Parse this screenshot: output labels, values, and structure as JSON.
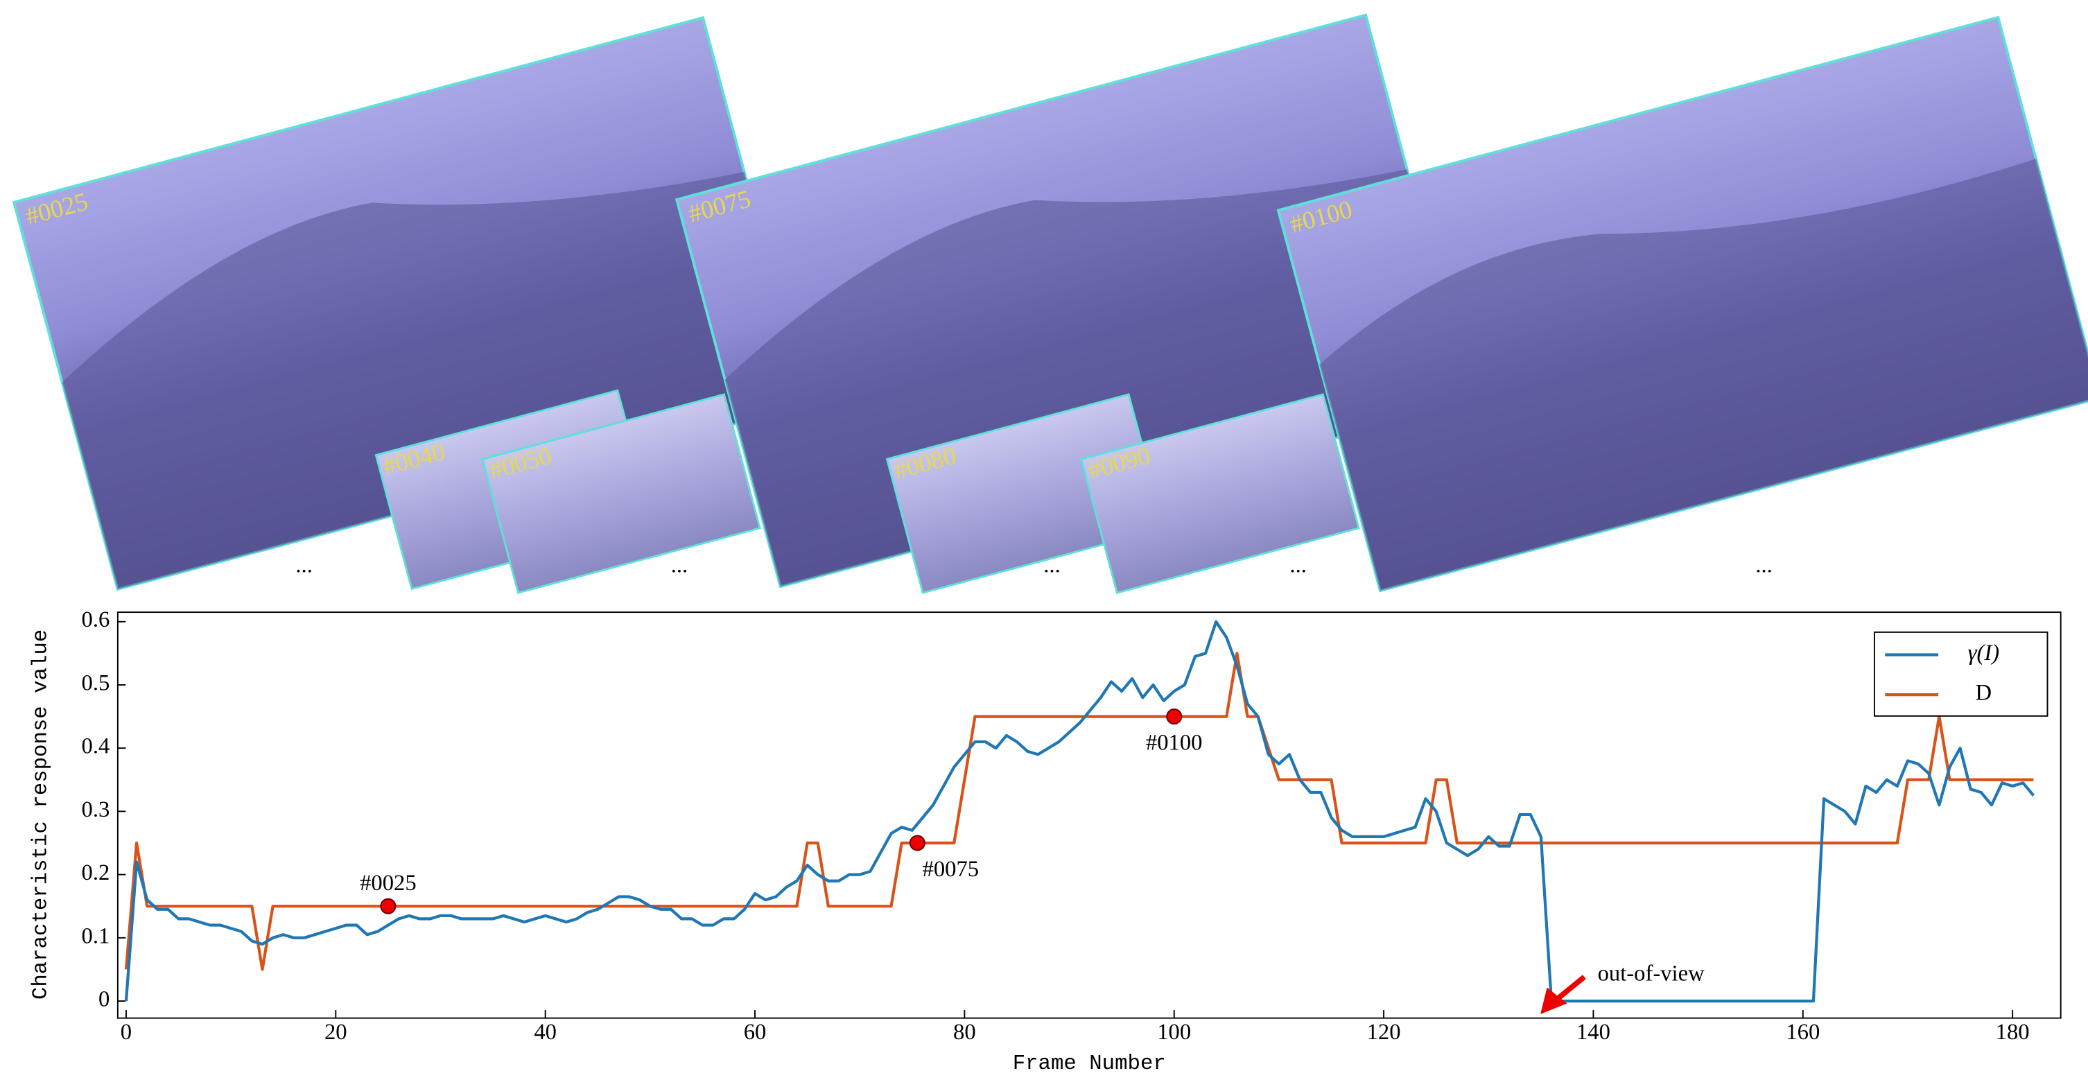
{
  "frames": [
    {
      "label": "#0025"
    },
    {
      "label": "#0040"
    },
    {
      "label": "#0050"
    },
    {
      "label": "#0075"
    },
    {
      "label": "#0080"
    },
    {
      "label": "#0090"
    },
    {
      "label": "#0100"
    }
  ],
  "ellipsis": "...",
  "chart_data": {
    "type": "line",
    "xlabel": "Frame Number",
    "ylabel": "Characteristic response value",
    "xlim": [
      -0.8,
      184.6
    ],
    "ylim": [
      -0.027,
      0.615
    ],
    "xticks": [
      0,
      20,
      40,
      60,
      80,
      100,
      120,
      140,
      160,
      180
    ],
    "yticks": [
      0,
      0.1,
      0.2,
      0.3,
      0.4,
      0.5,
      0.6
    ],
    "legend": "upper right",
    "series": [
      {
        "name": "γ(I)",
        "color": "#1f77b4",
        "x": [
          0,
          1,
          2,
          3,
          4,
          5,
          6,
          7,
          8,
          9,
          10,
          11,
          12,
          13,
          14,
          15,
          16,
          17,
          18,
          19,
          20,
          21,
          22,
          23,
          24,
          25,
          26,
          27,
          28,
          29,
          30,
          31,
          32,
          33,
          34,
          35,
          36,
          37,
          38,
          39,
          40,
          41,
          42,
          43,
          44,
          45,
          46,
          47,
          48,
          49,
          50,
          51,
          52,
          53,
          54,
          55,
          56,
          57,
          58,
          59,
          60,
          61,
          62,
          63,
          64,
          65,
          66,
          67,
          68,
          69,
          70,
          71,
          72,
          73,
          74,
          75,
          76,
          77,
          78,
          79,
          80,
          81,
          82,
          83,
          84,
          85,
          86,
          87,
          88,
          89,
          90,
          91,
          92,
          93,
          94,
          95,
          96,
          97,
          98,
          99,
          100,
          101,
          102,
          103,
          104,
          105,
          106,
          107,
          108,
          109,
          110,
          111,
          112,
          113,
          114,
          115,
          116,
          117,
          118,
          119,
          120,
          121,
          122,
          123,
          124,
          125,
          126,
          127,
          128,
          129,
          130,
          131,
          132,
          133,
          134,
          135,
          136,
          161,
          162,
          163,
          164,
          165,
          166,
          167,
          168,
          169,
          170,
          171,
          172,
          173,
          174,
          175,
          176,
          177,
          178,
          179,
          180,
          181,
          182
        ],
        "values": [
          0,
          0.22,
          0.16,
          0.145,
          0.145,
          0.13,
          0.13,
          0.125,
          0.12,
          0.12,
          0.115,
          0.11,
          0.095,
          0.09,
          0.1,
          0.105,
          0.1,
          0.1,
          0.105,
          0.11,
          0.115,
          0.12,
          0.12,
          0.105,
          0.11,
          0.12,
          0.13,
          0.135,
          0.13,
          0.13,
          0.135,
          0.135,
          0.13,
          0.13,
          0.13,
          0.13,
          0.135,
          0.13,
          0.125,
          0.13,
          0.135,
          0.13,
          0.125,
          0.13,
          0.14,
          0.145,
          0.155,
          0.165,
          0.165,
          0.16,
          0.15,
          0.145,
          0.145,
          0.13,
          0.13,
          0.12,
          0.12,
          0.13,
          0.13,
          0.145,
          0.17,
          0.16,
          0.165,
          0.18,
          0.19,
          0.215,
          0.2,
          0.19,
          0.19,
          0.2,
          0.2,
          0.205,
          0.235,
          0.265,
          0.275,
          0.27,
          0.29,
          0.31,
          0.34,
          0.37,
          0.39,
          0.41,
          0.41,
          0.4,
          0.42,
          0.41,
          0.395,
          0.39,
          0.4,
          0.41,
          0.425,
          0.44,
          0.46,
          0.48,
          0.505,
          0.49,
          0.51,
          0.48,
          0.5,
          0.475,
          0.49,
          0.5,
          0.545,
          0.55,
          0.6,
          0.575,
          0.53,
          0.47,
          0.45,
          0.39,
          0.375,
          0.39,
          0.35,
          0.33,
          0.33,
          0.29,
          0.27,
          0.26,
          0.26,
          0.26,
          0.26,
          0.265,
          0.27,
          0.275,
          0.32,
          0.3,
          0.25,
          0.24,
          0.23,
          0.24,
          0.26,
          0.245,
          0.245,
          0.295,
          0.295,
          0.26,
          0,
          0,
          0.32,
          0.31,
          0.3,
          0.28,
          0.34,
          0.33,
          0.35,
          0.34,
          0.38,
          0.375,
          0.36,
          0.31,
          0.37,
          0.4,
          0.335,
          0.33,
          0.31,
          0.345,
          0.34,
          0.345,
          0.325
        ]
      },
      {
        "name": "D",
        "color": "#d95319",
        "x": [
          0,
          1,
          2,
          12,
          13,
          14,
          64,
          65,
          66,
          67,
          73,
          74,
          79,
          81,
          105,
          106,
          107,
          108,
          110,
          115,
          116,
          124,
          125,
          126,
          127,
          169,
          170,
          172,
          173,
          174,
          182
        ],
        "values": [
          0.05,
          0.25,
          0.15,
          0.15,
          0.05,
          0.15,
          0.15,
          0.25,
          0.25,
          0.15,
          0.15,
          0.25,
          0.25,
          0.45,
          0.45,
          0.55,
          0.45,
          0.45,
          0.35,
          0.35,
          0.25,
          0.25,
          0.35,
          0.35,
          0.25,
          0.25,
          0.35,
          0.35,
          0.45,
          0.35,
          0.35
        ]
      }
    ],
    "annotations": [
      {
        "text": "#0025",
        "x": 25,
        "y": 0.15
      },
      {
        "text": "#0075",
        "x": 75.5,
        "y": 0.25
      },
      {
        "text": "#0100",
        "x": 100,
        "y": 0.45
      },
      {
        "text": "out-of-view"
      }
    ]
  }
}
